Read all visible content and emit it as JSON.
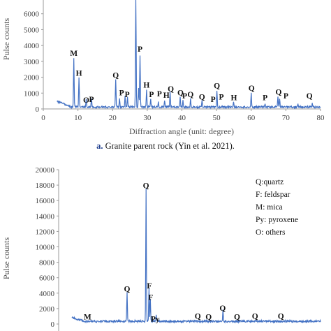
{
  "chart_data": [
    {
      "type": "line",
      "caption_bold": "a.",
      "caption_text": " Granite parent rock (Yin et al. 2021).",
      "xlabel": "Diffraction angle (unit: degree)",
      "ylabel": "Pulse counts",
      "xlim": [
        0,
        80
      ],
      "ylim": [
        0,
        7000
      ],
      "xticks": [
        "0",
        "10",
        "20",
        "30",
        "40",
        "50",
        "60",
        "70",
        "80"
      ],
      "yticks": [
        "0",
        "1000",
        "2000",
        "3000",
        "4000",
        "5000",
        "6000"
      ],
      "color": "#4472c4",
      "peaks": [
        {
          "x": 8.8,
          "y": 3050
        },
        {
          "x": 10.3,
          "y": 1850
        },
        {
          "x": 12.4,
          "y": 550
        },
        {
          "x": 13.9,
          "y": 500
        },
        {
          "x": 20.9,
          "y": 1700
        },
        {
          "x": 22.0,
          "y": 600
        },
        {
          "x": 23.6,
          "y": 700
        },
        {
          "x": 24.3,
          "y": 650
        },
        {
          "x": 26.7,
          "y": 7500
        },
        {
          "x": 27.5,
          "y": 1200
        },
        {
          "x": 27.9,
          "y": 3300
        },
        {
          "x": 29.8,
          "y": 1100
        },
        {
          "x": 31.0,
          "y": 500
        },
        {
          "x": 33.2,
          "y": 350
        },
        {
          "x": 35.0,
          "y": 450
        },
        {
          "x": 36.6,
          "y": 950
        },
        {
          "x": 39.5,
          "y": 600
        },
        {
          "x": 40.3,
          "y": 450
        },
        {
          "x": 42.5,
          "y": 500
        },
        {
          "x": 45.8,
          "y": 400
        },
        {
          "x": 50.1,
          "y": 1050
        },
        {
          "x": 54.9,
          "y": 300
        },
        {
          "x": 60.0,
          "y": 900
        },
        {
          "x": 64.0,
          "y": 250
        },
        {
          "x": 67.7,
          "y": 650
        },
        {
          "x": 68.2,
          "y": 550
        },
        {
          "x": 73.5,
          "y": 200
        },
        {
          "x": 77.6,
          "y": 200
        }
      ],
      "annotations": [
        {
          "label": "M",
          "x": 8.8,
          "y": 3350
        },
        {
          "label": "H",
          "x": 10.3,
          "y": 2100
        },
        {
          "label": "O",
          "x": 12.4,
          "y": 400
        },
        {
          "label": "P",
          "x": 13.9,
          "y": 450
        },
        {
          "label": "Q",
          "x": 20.9,
          "y": 1950
        },
        {
          "label": "P",
          "x": 22.6,
          "y": 850
        },
        {
          "label": "P",
          "x": 24.2,
          "y": 750
        },
        {
          "label": "P",
          "x": 27.9,
          "y": 3600
        },
        {
          "label": "H",
          "x": 29.8,
          "y": 1350
        },
        {
          "label": "P",
          "x": 31.2,
          "y": 750
        },
        {
          "label": "P",
          "x": 33.5,
          "y": 800
        },
        {
          "label": "H",
          "x": 35.5,
          "y": 700
        },
        {
          "label": "Q",
          "x": 36.8,
          "y": 1100
        },
        {
          "label": "Q",
          "x": 39.6,
          "y": 850
        },
        {
          "label": "P",
          "x": 40.8,
          "y": 650
        },
        {
          "label": "Q",
          "x": 42.5,
          "y": 750
        },
        {
          "label": "Q",
          "x": 45.8,
          "y": 600
        },
        {
          "label": "P",
          "x": 49.0,
          "y": 450
        },
        {
          "label": "Q",
          "x": 50.1,
          "y": 1300
        },
        {
          "label": "P",
          "x": 51.4,
          "y": 600
        },
        {
          "label": "H",
          "x": 55.0,
          "y": 550
        },
        {
          "label": "Q",
          "x": 60.1,
          "y": 1150
        },
        {
          "label": "P",
          "x": 64.0,
          "y": 550
        },
        {
          "label": "Q",
          "x": 67.9,
          "y": 900
        },
        {
          "label": "P",
          "x": 70.0,
          "y": 650
        },
        {
          "label": "Q",
          "x": 76.8,
          "y": 650
        }
      ]
    },
    {
      "type": "line",
      "ylabel": "Pulse counts",
      "xlim": [
        0,
        80
      ],
      "ylim": [
        0,
        20000
      ],
      "yticks": [
        "0",
        "2000",
        "4000",
        "6000",
        "8000",
        "10000",
        "12000",
        "14000",
        "16000",
        "18000",
        "20000"
      ],
      "color": "#4472c4",
      "legend": [
        "Q:quartz",
        "F: feldspar",
        "M: mica",
        "Py: pyroxene",
        "O: others"
      ],
      "legend_position": "top-right",
      "peaks": [
        {
          "x": 20.9,
          "y": 3900
        },
        {
          "x": 26.7,
          "y": 17300
        },
        {
          "x": 27.6,
          "y": 4300
        },
        {
          "x": 28.0,
          "y": 3000
        },
        {
          "x": 29.8,
          "y": 900
        },
        {
          "x": 50.2,
          "y": 1500
        }
      ],
      "annotations": [
        {
          "label": "Q",
          "x": 20.9,
          "y": 4200
        },
        {
          "label": "Q",
          "x": 26.7,
          "y": 17600
        },
        {
          "label": "F",
          "x": 27.7,
          "y": 4600
        },
        {
          "label": "F",
          "x": 28.1,
          "y": 3100
        },
        {
          "label": "M",
          "x": 8.8,
          "y": 600
        },
        {
          "label": "Py",
          "x": 29.5,
          "y": 300
        },
        {
          "label": "Q",
          "x": 42.5,
          "y": 700
        },
        {
          "label": "Q",
          "x": 45.8,
          "y": 600
        },
        {
          "label": "Q",
          "x": 50.1,
          "y": 1700
        },
        {
          "label": "Q",
          "x": 54.5,
          "y": 600
        },
        {
          "label": "Q",
          "x": 60.0,
          "y": 700
        },
        {
          "label": "Q",
          "x": 67.9,
          "y": 700
        }
      ]
    }
  ]
}
